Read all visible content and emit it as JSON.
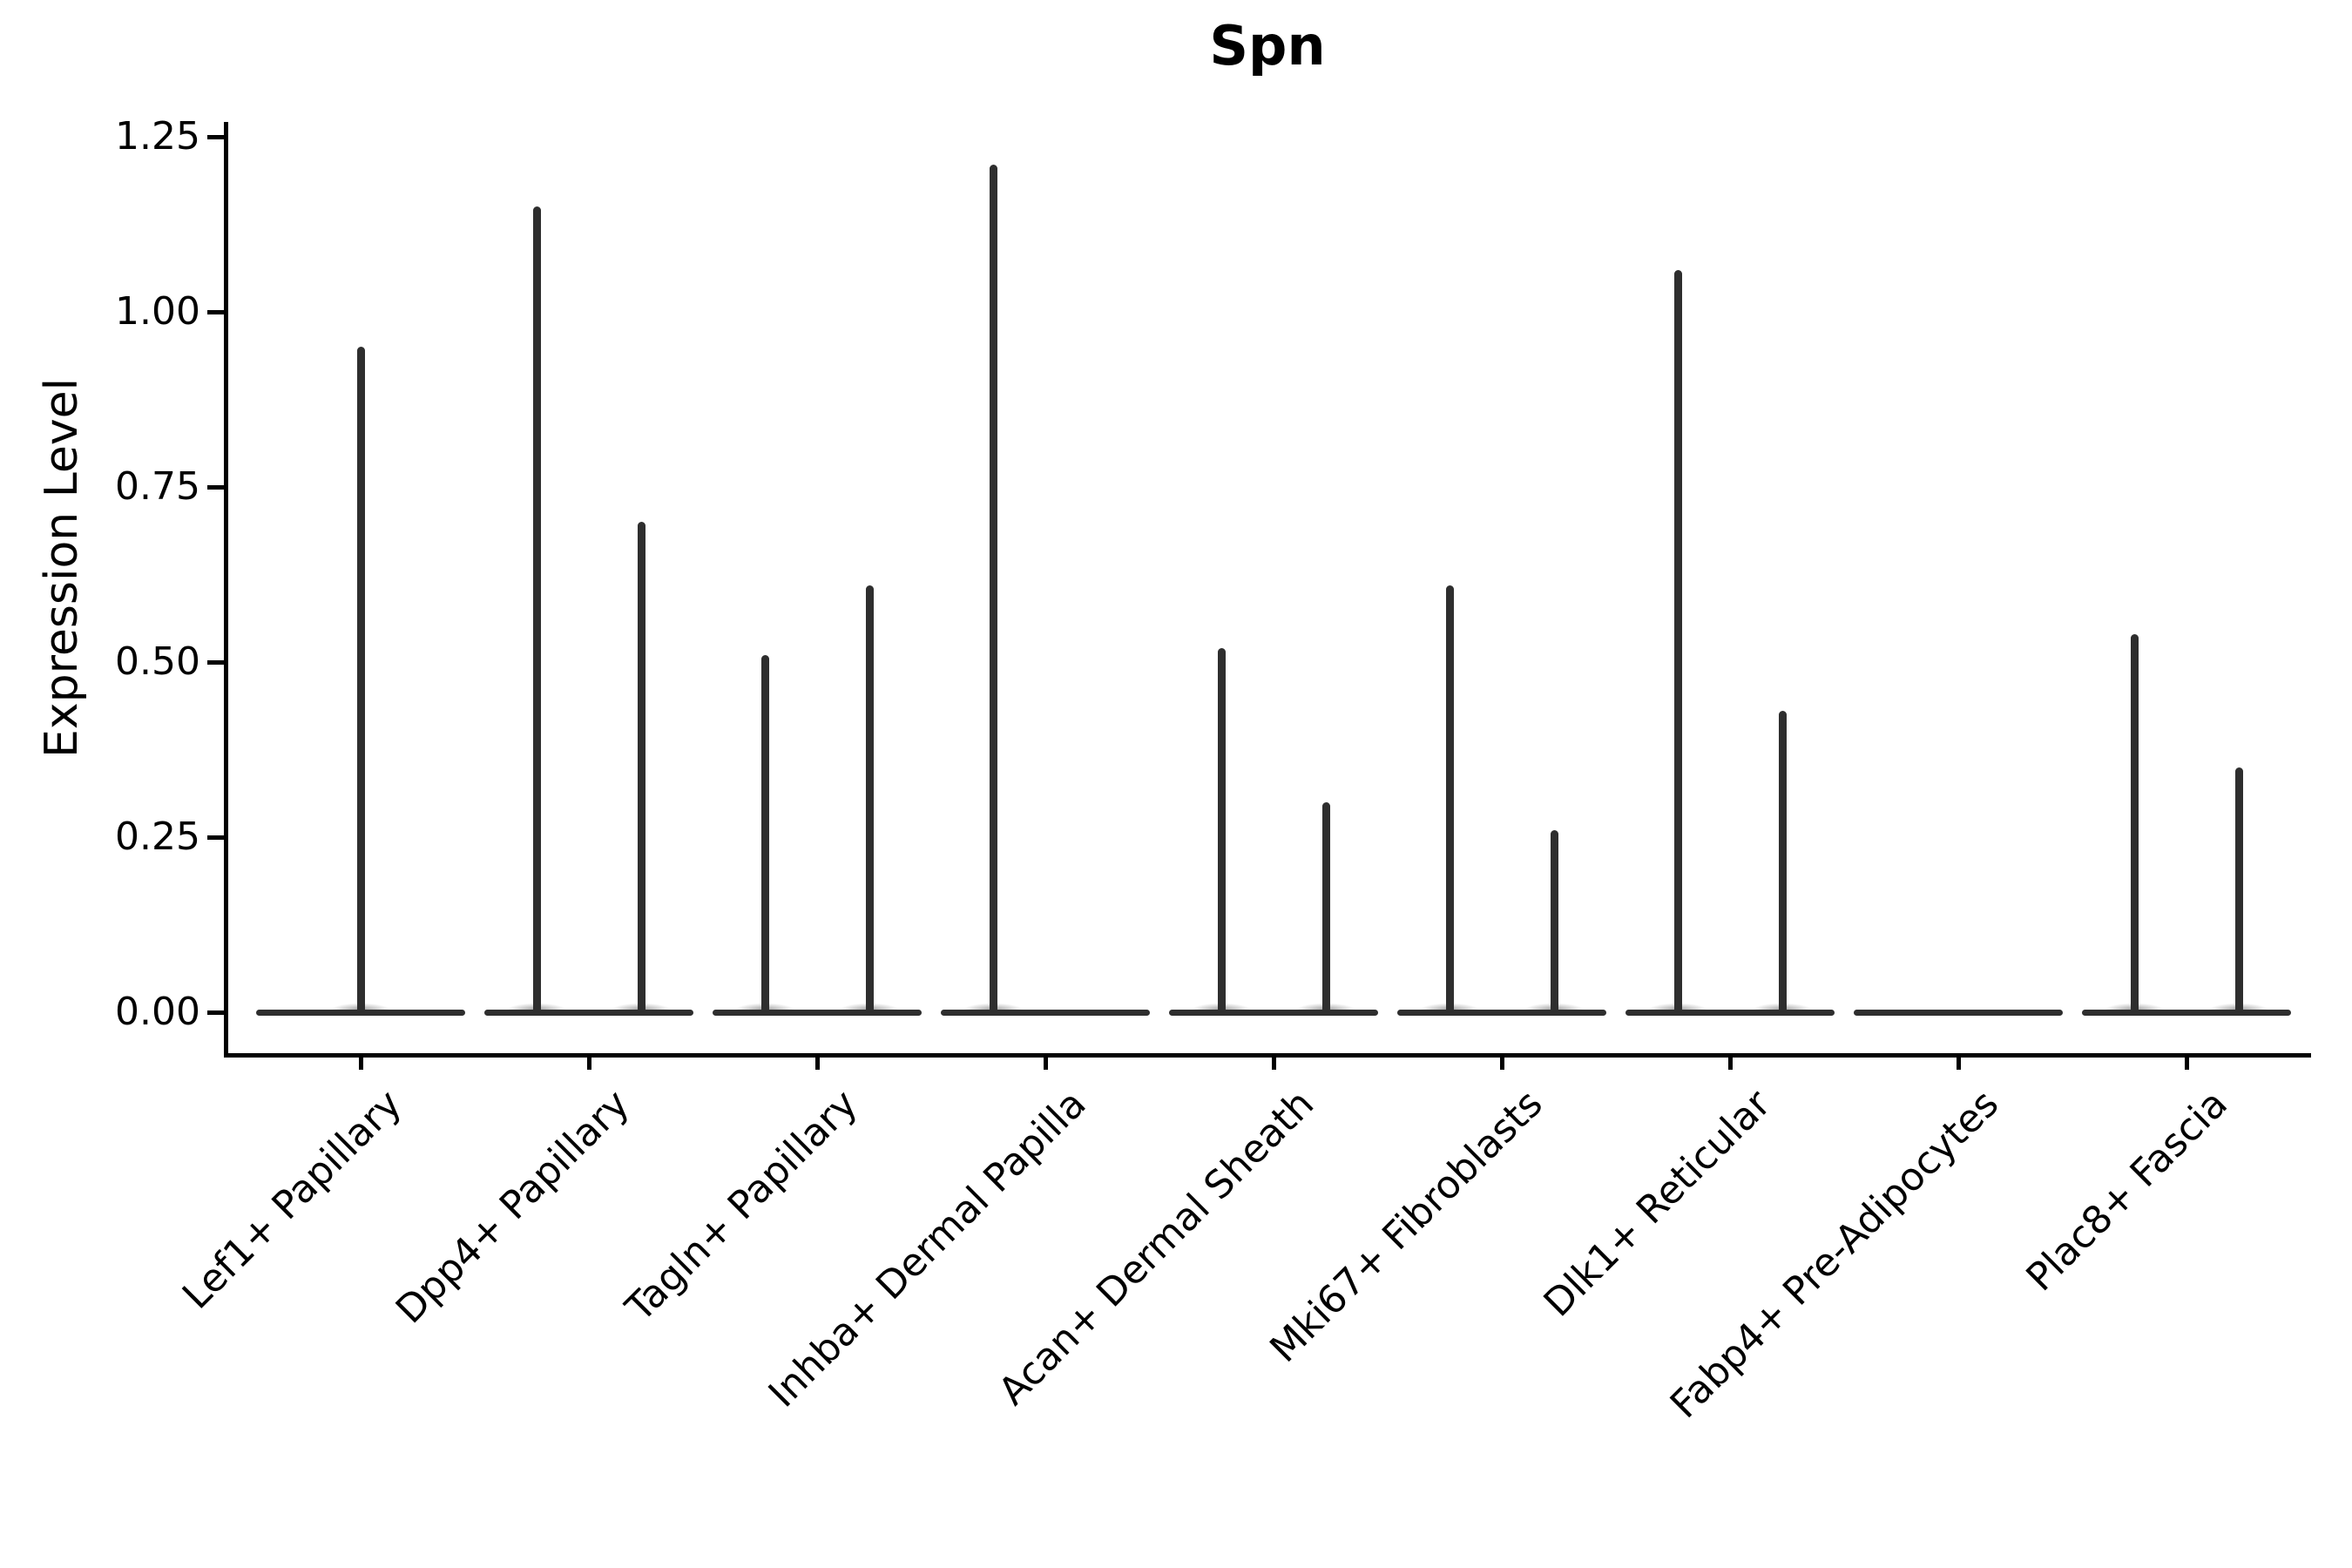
{
  "chart_data": {
    "type": "violin",
    "title": "Spn",
    "ylabel": "Expression Level",
    "xlabel": "",
    "ylim": [
      0,
      1.25
    ],
    "yticks": [
      0,
      0.25,
      0.5,
      0.75,
      1.0,
      1.25
    ],
    "grid": false,
    "legend": null,
    "categories": [
      "Lef1+ Papillary",
      "Dpp4+ Papillary",
      "Tagln+ Papillary",
      "Inhba+ Dermal Papilla",
      "Acan+ Dermal Sheath",
      "Mki67+ Fibroblasts",
      "Dlk1+ Reticular",
      "Fabp4+ Pre-Adipocytes",
      "Plac8+ Fascia"
    ],
    "violins": [
      {
        "category": "Lef1+ Papillary",
        "baseline": 0,
        "spikes": [
          {
            "position": "center",
            "max": 0.95
          }
        ]
      },
      {
        "category": "Dpp4+ Papillary",
        "baseline": 0,
        "spikes": [
          {
            "position": "left",
            "max": 1.15
          },
          {
            "position": "right",
            "max": 0.7
          }
        ]
      },
      {
        "category": "Tagln+ Papillary",
        "baseline": 0,
        "spikes": [
          {
            "position": "left",
            "max": 0.51
          },
          {
            "position": "right",
            "max": 0.61
          }
        ]
      },
      {
        "category": "Inhba+ Dermal Papilla",
        "baseline": 0,
        "spikes": [
          {
            "position": "left",
            "max": 1.21
          }
        ]
      },
      {
        "category": "Acan+ Dermal Sheath",
        "baseline": 0,
        "spikes": [
          {
            "position": "left",
            "max": 0.52
          },
          {
            "position": "right",
            "max": 0.3
          }
        ]
      },
      {
        "category": "Mki67+ Fibroblasts",
        "baseline": 0,
        "spikes": [
          {
            "position": "left",
            "max": 0.61
          },
          {
            "position": "right",
            "max": 0.26
          }
        ]
      },
      {
        "category": "Dlk1+ Reticular",
        "baseline": 0,
        "spikes": [
          {
            "position": "left",
            "max": 1.06
          },
          {
            "position": "right",
            "max": 0.43
          }
        ]
      },
      {
        "category": "Fabp4+ Pre-Adipocytes",
        "baseline": 0,
        "spikes": []
      },
      {
        "category": "Plac8+ Fascia",
        "baseline": 0,
        "spikes": [
          {
            "position": "left",
            "max": 0.54
          },
          {
            "position": "right",
            "max": 0.35
          }
        ]
      }
    ],
    "colors": {
      "violin": "#2e2e2e",
      "axis": "#000000",
      "text": "#000000",
      "background": "#ffffff"
    }
  }
}
